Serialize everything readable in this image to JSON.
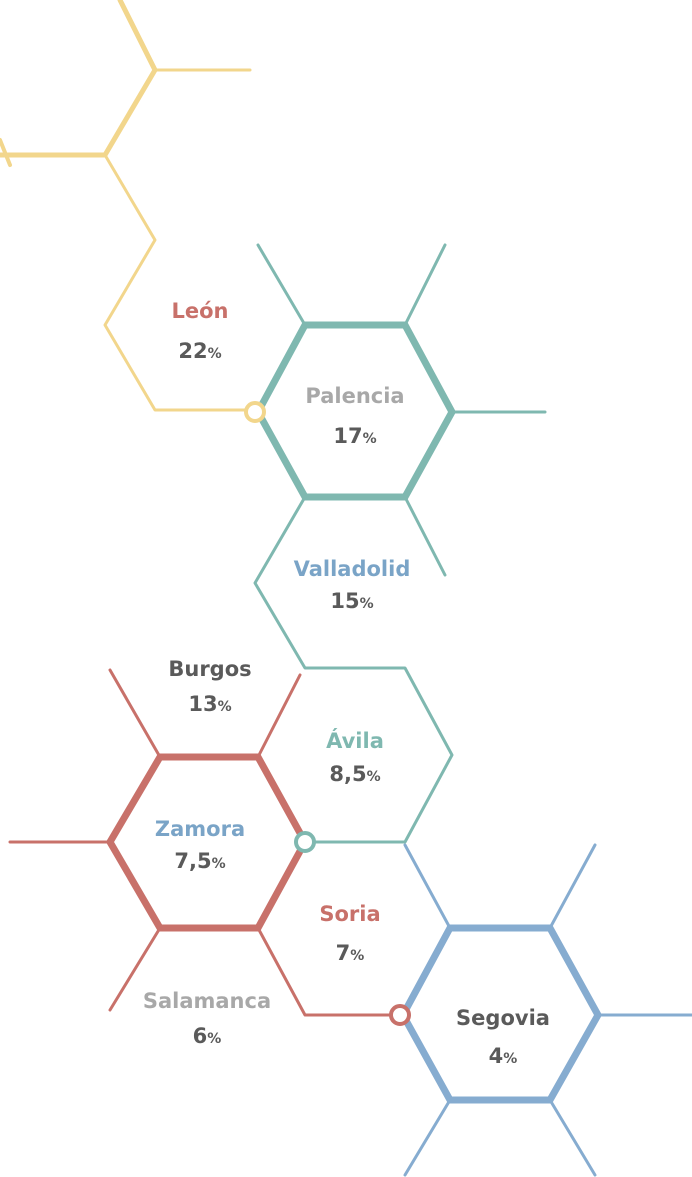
{
  "regions": [
    {
      "name": "León",
      "value": "22",
      "unit": "%"
    },
    {
      "name": "Palencia",
      "value": "17",
      "unit": "%"
    },
    {
      "name": "Valladolid",
      "value": "15",
      "unit": "%"
    },
    {
      "name": "Burgos",
      "value": "13",
      "unit": "%"
    },
    {
      "name": "Ávila",
      "value": "8,5",
      "unit": "%"
    },
    {
      "name": "Zamora",
      "value": "7,5",
      "unit": "%"
    },
    {
      "name": "Soria",
      "value": "7",
      "unit": "%"
    },
    {
      "name": "Salamanca",
      "value": "6",
      "unit": "%"
    },
    {
      "name": "Segovia",
      "value": "4",
      "unit": "%"
    }
  ]
}
